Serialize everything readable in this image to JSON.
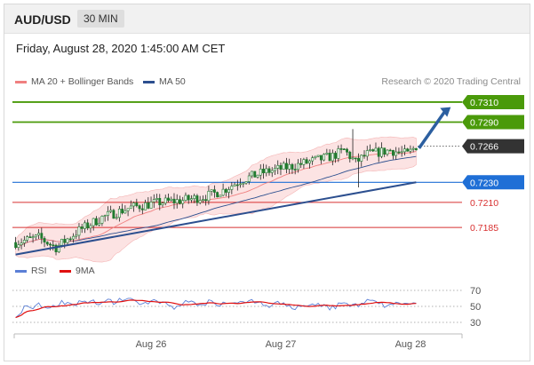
{
  "header": {
    "pair": "AUD/USD",
    "timeframe": "30 MIN"
  },
  "date_line": "Friday, August 28, 2020 1:45:00 AM CET",
  "legend": {
    "ma20": {
      "label": "MA 20 + Bollinger Bands",
      "color": "#f08080"
    },
    "ma50": {
      "label": "MA 50",
      "color": "#2c4f8f"
    },
    "credit": "Research © 2020 Trading Central"
  },
  "rsi_legend": {
    "rsi": {
      "label": "RSI",
      "color": "#5b7fd6"
    },
    "ma9": {
      "label": "9MA",
      "color": "#e01010"
    }
  },
  "chart_data": [
    {
      "type": "candlestick",
      "x_labels": [
        "Aug 26",
        "Aug 27",
        "Aug 28"
      ],
      "ylim": [
        0.7155,
        0.7325
      ],
      "levels": [
        {
          "value": "0.7310",
          "color": "#4a9a0a",
          "kind": "resistance"
        },
        {
          "value": "0.7290",
          "color": "#4a9a0a",
          "kind": "resistance"
        },
        {
          "value": "0.7266",
          "color": "#333333",
          "kind": "last-price"
        },
        {
          "value": "0.7230",
          "color": "#1f6fd6",
          "kind": "pivot"
        },
        {
          "value": "0.7210",
          "color": "#d83030",
          "kind": "support"
        },
        {
          "value": "0.7185",
          "color": "#d83030",
          "kind": "support"
        }
      ],
      "trendline": {
        "from": [
          0,
          0.7158
        ],
        "to": [
          139,
          0.723
        ]
      },
      "projection": {
        "from": [
          140,
          0.7264
        ],
        "to": [
          151,
          0.7305
        ]
      },
      "n_bars": 140
    },
    {
      "type": "line",
      "ylim": [
        20,
        80
      ],
      "ticks": [
        "70",
        "50",
        "30"
      ],
      "series": [
        {
          "name": "RSI",
          "color": "#5b7fd6"
        },
        {
          "name": "9MA",
          "color": "#e01010"
        }
      ]
    }
  ]
}
